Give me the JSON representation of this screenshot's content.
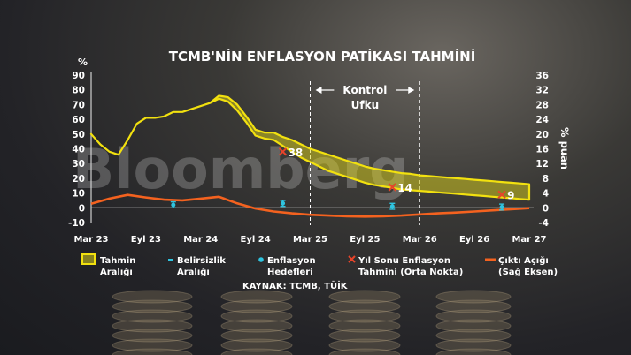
{
  "watermark": "Bloomberg",
  "colors": {
    "band_fill": "#d9cf1a",
    "band_stroke": "#f2e10f",
    "output_gap": "#f4621f",
    "targets": "#2fc4e0",
    "uncertainty": "#2fc4e0",
    "year_end_marker": "#e8442a",
    "text": "#ffffff"
  },
  "chart_data": {
    "type": "line",
    "title": "TCMB'NİN ENFLASYON PATİKASI TAHMİNİ",
    "source": "KAYNAK: TCMB, TÜİK",
    "y_left": {
      "unit": "%",
      "lim": [
        -10,
        90
      ],
      "ticks": [
        -10,
        0,
        10,
        20,
        30,
        40,
        50,
        60,
        70,
        80,
        90
      ]
    },
    "y_right": {
      "label": "% puan",
      "lim": [
        -4,
        36
      ],
      "ticks": [
        -4,
        0,
        4,
        8,
        12,
        16,
        20,
        24,
        28,
        32,
        36
      ]
    },
    "x_ticks": [
      "Mar 23",
      "Eyl 23",
      "Mar 24",
      "Eyl 24",
      "Mar 25",
      "Eyl 25",
      "Mar 26",
      "Eyl 26",
      "Mar 27"
    ],
    "control_horizon": {
      "label_line1": "Kontrol",
      "label_line2": "Ufku",
      "start": 24,
      "end": 36
    },
    "forecast_band": {
      "name": "Tahmin Aralığı",
      "x": [
        0,
        1,
        2,
        3,
        4,
        5,
        6,
        7,
        8,
        9,
        10,
        11,
        12,
        13,
        14,
        15,
        16,
        17,
        18,
        19,
        20,
        21,
        22,
        23,
        24,
        25,
        26,
        27,
        28,
        29,
        30,
        31,
        32,
        33,
        34,
        35,
        36,
        37,
        38,
        39,
        40,
        41,
        42,
        43,
        44,
        45,
        46,
        47,
        48
      ],
      "upper": [
        50,
        43,
        38,
        36,
        46,
        57,
        61,
        61,
        62,
        65,
        65,
        67,
        69,
        71,
        76,
        75,
        70,
        62,
        53,
        51,
        51,
        48,
        46,
        43,
        40,
        38,
        36,
        34,
        32,
        30,
        28,
        26.5,
        25.5,
        24.5,
        23.5,
        23,
        22,
        21.5,
        21,
        20.5,
        20,
        19.5,
        19,
        18.5,
        18,
        17.5,
        17,
        16.5,
        16
      ],
      "lower": [
        50,
        43,
        38,
        36,
        46,
        57,
        61,
        61,
        62,
        65,
        65,
        67,
        69,
        71,
        74,
        72,
        66,
        58,
        49,
        47,
        46,
        42,
        38,
        34,
        31,
        28,
        25,
        23,
        21,
        19,
        17,
        15.5,
        14.5,
        13.5,
        12.5,
        12,
        11.5,
        11,
        10.5,
        10,
        9.5,
        9,
        8.5,
        8,
        7.5,
        7,
        6.5,
        6,
        5.5
      ]
    },
    "output_gap": {
      "name": "Çıktı Açığı (Sağ Eksen)",
      "x": [
        0,
        2,
        4,
        6,
        8,
        10,
        12,
        14,
        16,
        18,
        20,
        22,
        24,
        26,
        28,
        30,
        32,
        34,
        36,
        38,
        40,
        42,
        44,
        46,
        48
      ],
      "values": [
        1.1,
        2.5,
        3.5,
        2.8,
        2.2,
        2.0,
        2.5,
        3.0,
        1.2,
        -0.2,
        -1.0,
        -1.5,
        -1.9,
        -2.1,
        -2.3,
        -2.4,
        -2.3,
        -2.1,
        -1.8,
        -1.5,
        -1.3,
        -1.0,
        -0.7,
        -0.4,
        -0.1
      ]
    },
    "inflation_targets": {
      "name": "Enflasyon Hedefleri",
      "points": [
        {
          "x": 9,
          "y": 2
        },
        {
          "x": 21,
          "y": 3
        },
        {
          "x": 33,
          "y": 1
        },
        {
          "x": 45,
          "y": 0.5
        }
      ]
    },
    "uncertainty_ranges": {
      "name": "Belirsizlik Aralığı",
      "ranges": [
        {
          "x": 9,
          "low": 0,
          "high": 4
        },
        {
          "x": 21,
          "low": 1,
          "high": 5
        },
        {
          "x": 33,
          "low": -1,
          "high": 3
        },
        {
          "x": 45,
          "low": -1.5,
          "high": 2.5
        }
      ]
    },
    "year_end_forecasts": {
      "name": "Yıl Sonu Enflasyon Tahmini (Orta Nokta)",
      "points": [
        {
          "x": 21,
          "y": 38,
          "label": "38"
        },
        {
          "x": 33,
          "y": 14,
          "label": "14"
        },
        {
          "x": 45,
          "y": 9,
          "label": "9"
        }
      ]
    },
    "legend": [
      {
        "key": "band",
        "line1": "Tahmin",
        "line2": "Aralığı"
      },
      {
        "key": "uncertainty",
        "line1": "Belirsizlik",
        "line2": "Aralığı"
      },
      {
        "key": "target",
        "line1": "Enflasyon",
        "line2": "Hedefleri"
      },
      {
        "key": "yearend",
        "line1": "Yıl Sonu Enflasyon",
        "line2": "Tahmini (Orta Nokta)"
      },
      {
        "key": "gap",
        "line1": "Çıktı Açığı",
        "line2": "(Sağ Eksen)"
      }
    ]
  }
}
